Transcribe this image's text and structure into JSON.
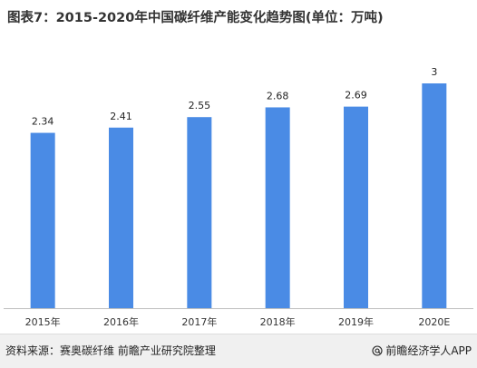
{
  "title": "图表7：2015-2020年中国碳纤维产能变化趋势图(单位：万吨)",
  "chart_data": {
    "type": "bar",
    "categories": [
      "2015年",
      "2016年",
      "2017年",
      "2018年",
      "2019年",
      "2020E"
    ],
    "values": [
      2.34,
      2.41,
      2.55,
      2.68,
      2.69,
      3
    ],
    "value_labels": [
      "2.34",
      "2.41",
      "2.55",
      "2.68",
      "2.69",
      "3"
    ],
    "unit": "万吨",
    "ylim": [
      0,
      3
    ],
    "grid": false,
    "legend": "none",
    "bar_color": "#4A8BE5"
  },
  "footer": {
    "source": "资料来源：赛奥碳纤维 前瞻产业研究院整理",
    "brand": "前瞻经济学人APP",
    "brand_icon": "at-sign-icon"
  },
  "colors": {
    "bar": "#4A8BE5",
    "footer_bg": "#f0f0f0",
    "text": "#333333"
  }
}
